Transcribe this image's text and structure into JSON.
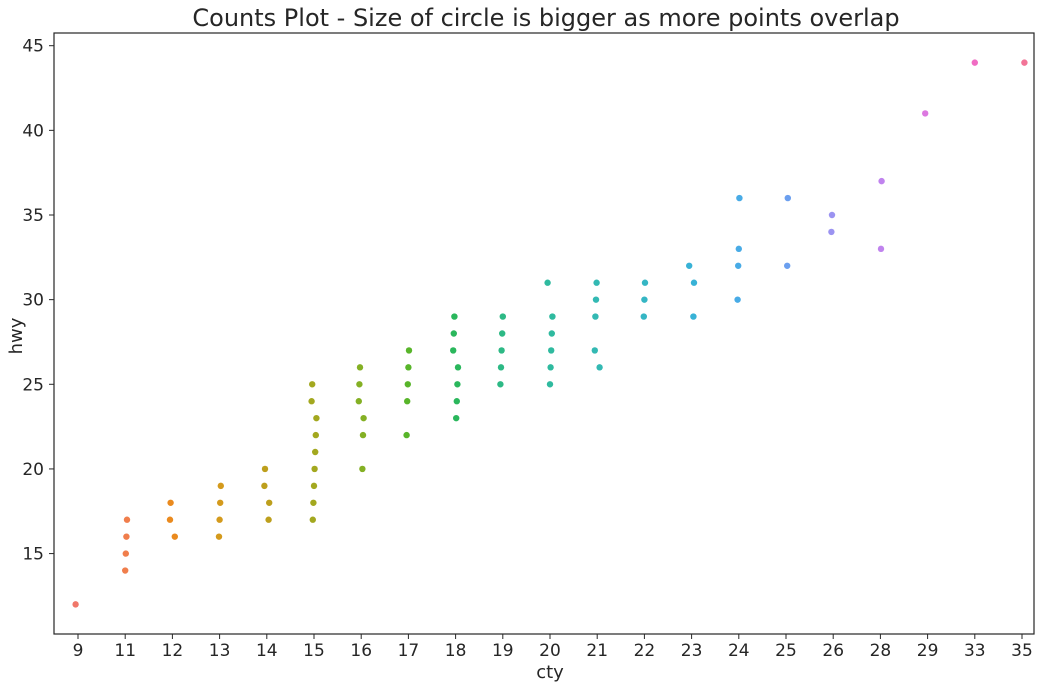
{
  "chart_data": {
    "type": "scatter",
    "title": "Counts Plot - Size of circle is bigger as more points overlap",
    "xlabel": "cty",
    "ylabel": "hwy",
    "x_scale": "categorical",
    "categories": [
      "9",
      "11",
      "12",
      "13",
      "14",
      "15",
      "16",
      "17",
      "18",
      "19",
      "20",
      "21",
      "22",
      "23",
      "24",
      "25",
      "26",
      "28",
      "29",
      "33",
      "35"
    ],
    "ylim": [
      10.25,
      45.75
    ],
    "yticks": [
      15,
      20,
      25,
      30,
      35,
      40,
      45
    ],
    "grid": false,
    "legend": "none",
    "palette": [
      "#f0776a",
      "#f07e4c",
      "#ea8a1e",
      "#d49a1c",
      "#bd9f1c",
      "#a3a81f",
      "#84b024",
      "#58b52a",
      "#2ab75c",
      "#2db985",
      "#2fba9f",
      "#33b9b3",
      "#35b6c4",
      "#38b2d6",
      "#48abe6",
      "#6b9fef",
      "#9b93f1",
      "#c083ee",
      "#dc78e0",
      "#f06cc3",
      "#f27497"
    ],
    "series": [
      {
        "category": "9",
        "hwy": [
          12
        ]
      },
      {
        "category": "11",
        "hwy": [
          14,
          15,
          16,
          17
        ]
      },
      {
        "category": "12",
        "hwy": [
          16,
          17,
          18
        ]
      },
      {
        "category": "13",
        "hwy": [
          16,
          17,
          18,
          19
        ]
      },
      {
        "category": "14",
        "hwy": [
          17,
          18,
          19,
          20
        ]
      },
      {
        "category": "15",
        "hwy": [
          17,
          18,
          19,
          20,
          21,
          22,
          23,
          24,
          25
        ]
      },
      {
        "category": "16",
        "hwy": [
          20,
          22,
          23,
          24,
          25,
          26
        ]
      },
      {
        "category": "17",
        "hwy": [
          22,
          24,
          25,
          26,
          27
        ]
      },
      {
        "category": "18",
        "hwy": [
          23,
          24,
          25,
          26,
          27,
          28,
          29
        ]
      },
      {
        "category": "19",
        "hwy": [
          25,
          26,
          27,
          28,
          29
        ]
      },
      {
        "category": "20",
        "hwy": [
          25,
          26,
          27,
          28,
          29,
          31
        ]
      },
      {
        "category": "21",
        "hwy": [
          26,
          27,
          29,
          30,
          31
        ]
      },
      {
        "category": "22",
        "hwy": [
          29,
          30,
          31
        ]
      },
      {
        "category": "23",
        "hwy": [
          29,
          31,
          32
        ]
      },
      {
        "category": "24",
        "hwy": [
          30,
          32,
          33,
          36
        ]
      },
      {
        "category": "25",
        "hwy": [
          32,
          36
        ]
      },
      {
        "category": "26",
        "hwy": [
          34,
          35
        ]
      },
      {
        "category": "28",
        "hwy": [
          33,
          37
        ]
      },
      {
        "category": "29",
        "hwy": [
          41
        ]
      },
      {
        "category": "33",
        "hwy": [
          44
        ]
      },
      {
        "category": "35",
        "hwy": [
          44
        ]
      }
    ]
  }
}
